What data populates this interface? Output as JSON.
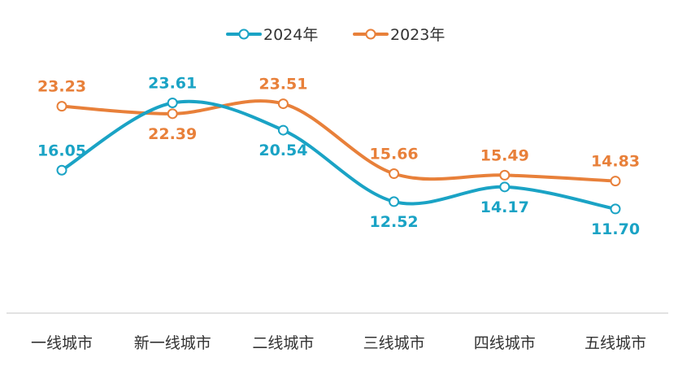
{
  "chart_data": {
    "type": "line",
    "title": "",
    "xlabel": "",
    "ylabel": "",
    "smooth": true,
    "grid": false,
    "legend_position": "top-center",
    "ylim": [
      0,
      26
    ],
    "categories": [
      "一线城市",
      "新一线城市",
      "二线城市",
      "三线城市",
      "四线城市",
      "五线城市"
    ],
    "series": [
      {
        "name": "2024年",
        "color": "#1aa3c5",
        "values": [
          16.05,
          23.61,
          20.54,
          12.52,
          14.17,
          11.7
        ],
        "labels": [
          "16.05",
          "23.61",
          "20.54",
          "12.52",
          "14.17",
          "11.70"
        ],
        "label_side": [
          "above",
          "above",
          "below",
          "below",
          "below",
          "below"
        ]
      },
      {
        "name": "2023年",
        "color": "#e8803a",
        "values": [
          23.23,
          22.39,
          23.51,
          15.66,
          15.49,
          14.83
        ],
        "labels": [
          "23.23",
          "22.39",
          "23.51",
          "15.66",
          "15.49",
          "14.83"
        ],
        "label_side": [
          "above",
          "below",
          "above",
          "above",
          "above",
          "above"
        ]
      }
    ]
  }
}
